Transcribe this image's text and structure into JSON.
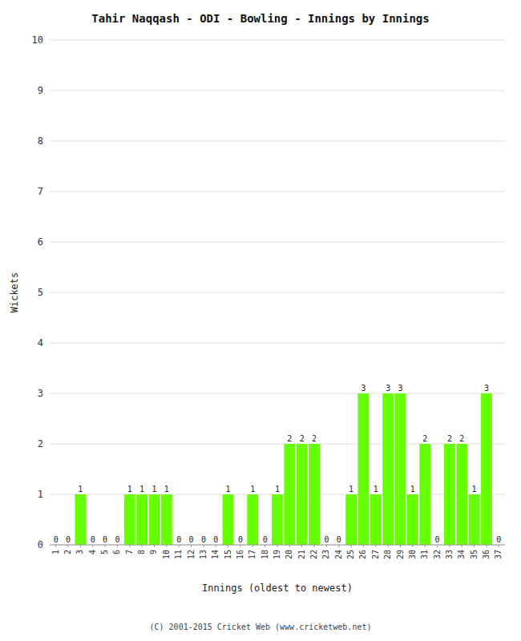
{
  "chart_data": {
    "type": "bar",
    "title": "Tahir Naqqash - ODI - Bowling - Innings by Innings",
    "x_label": "Innings (oldest to newest)",
    "y_label": "Wickets",
    "categories": [
      "1",
      "2",
      "3",
      "4",
      "5",
      "6",
      "7",
      "8",
      "9",
      "10",
      "11",
      "12",
      "13",
      "14",
      "15",
      "16",
      "17",
      "18",
      "19",
      "20",
      "21",
      "22",
      "23",
      "24",
      "25",
      "26",
      "27",
      "28",
      "29",
      "30",
      "31",
      "32",
      "33",
      "34",
      "35",
      "36",
      "37"
    ],
    "values": [
      0,
      0,
      1,
      0,
      0,
      0,
      1,
      1,
      1,
      1,
      0,
      0,
      0,
      0,
      1,
      0,
      1,
      0,
      1,
      2,
      2,
      2,
      0,
      0,
      1,
      3,
      1,
      3,
      3,
      1,
      2,
      0,
      2,
      2,
      1,
      3,
      0
    ],
    "color": "#66ff00",
    "ylim": [
      0,
      10
    ],
    "yticks": [
      0,
      1,
      2,
      3,
      4,
      5,
      6,
      7,
      8,
      9,
      10
    ],
    "grid": true,
    "data_labels": true,
    "annotations": [
      "(C) 2001-2015 Cricket Web (www.cricketweb.net)"
    ]
  }
}
